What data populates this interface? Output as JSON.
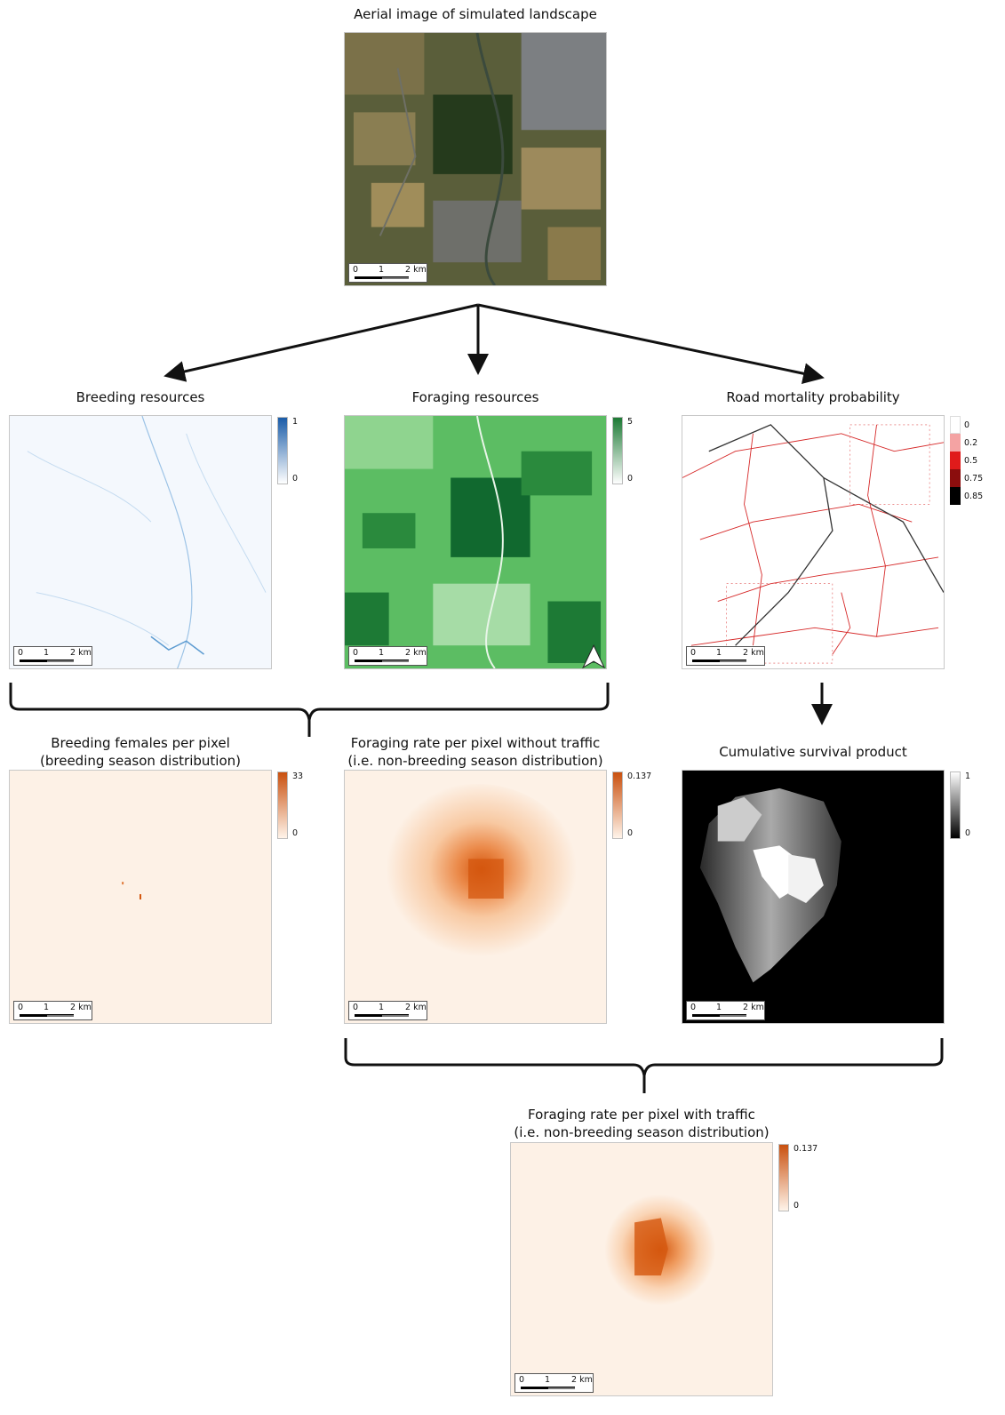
{
  "titles": {
    "aerial": "Aerial image of simulated landscape",
    "breeding": "Breeding resources",
    "foraging": "Foraging resources",
    "road": "Road mortality probability",
    "females_l1": "Breeding females per pixel",
    "females_l2": "(breeding season distribution)",
    "forage_no_l1": "Foraging rate per pixel without traffic",
    "forage_no_l2": "(i.e. non-breeding season distribution)",
    "survival": "Cumulative survival product",
    "forage_tr_l1": "Foraging rate per pixel with traffic",
    "forage_tr_l2": "(i.e. non-breeding season distribution)"
  },
  "scalebar": {
    "t0": "0",
    "t1": "1",
    "t2": "2 km"
  },
  "legends": {
    "breeding": {
      "max": "1",
      "min": "0",
      "color": "#1a5ca8"
    },
    "foraging": {
      "max": "5",
      "min": "0",
      "color": "#1d7a35"
    },
    "road": {
      "items": [
        "0",
        "0.2",
        "0.5",
        "0.75",
        "0.85"
      ],
      "colors": [
        "#ffffff",
        "#f4a3a3",
        "#e01b1b",
        "#8b0d0d",
        "#000000"
      ]
    },
    "females": {
      "max": "33",
      "min": "0",
      "color": "#c9500f"
    },
    "forage_no": {
      "max": "0.137",
      "min": "0",
      "color": "#c9500f"
    },
    "survival": {
      "max": "1",
      "min": "0"
    },
    "forage_tr": {
      "max": "0.137",
      "min": "0",
      "color": "#c9500f"
    }
  },
  "colors": {
    "aerial_base": "#4b5232",
    "breeding_bg": "#f4f8fd",
    "foraging_bg": "#5cbd63",
    "road_line": "#d62828",
    "orange_bg": "#fdf1e6",
    "orange_hot": "#d4570f",
    "survival_bg": "#000000"
  }
}
